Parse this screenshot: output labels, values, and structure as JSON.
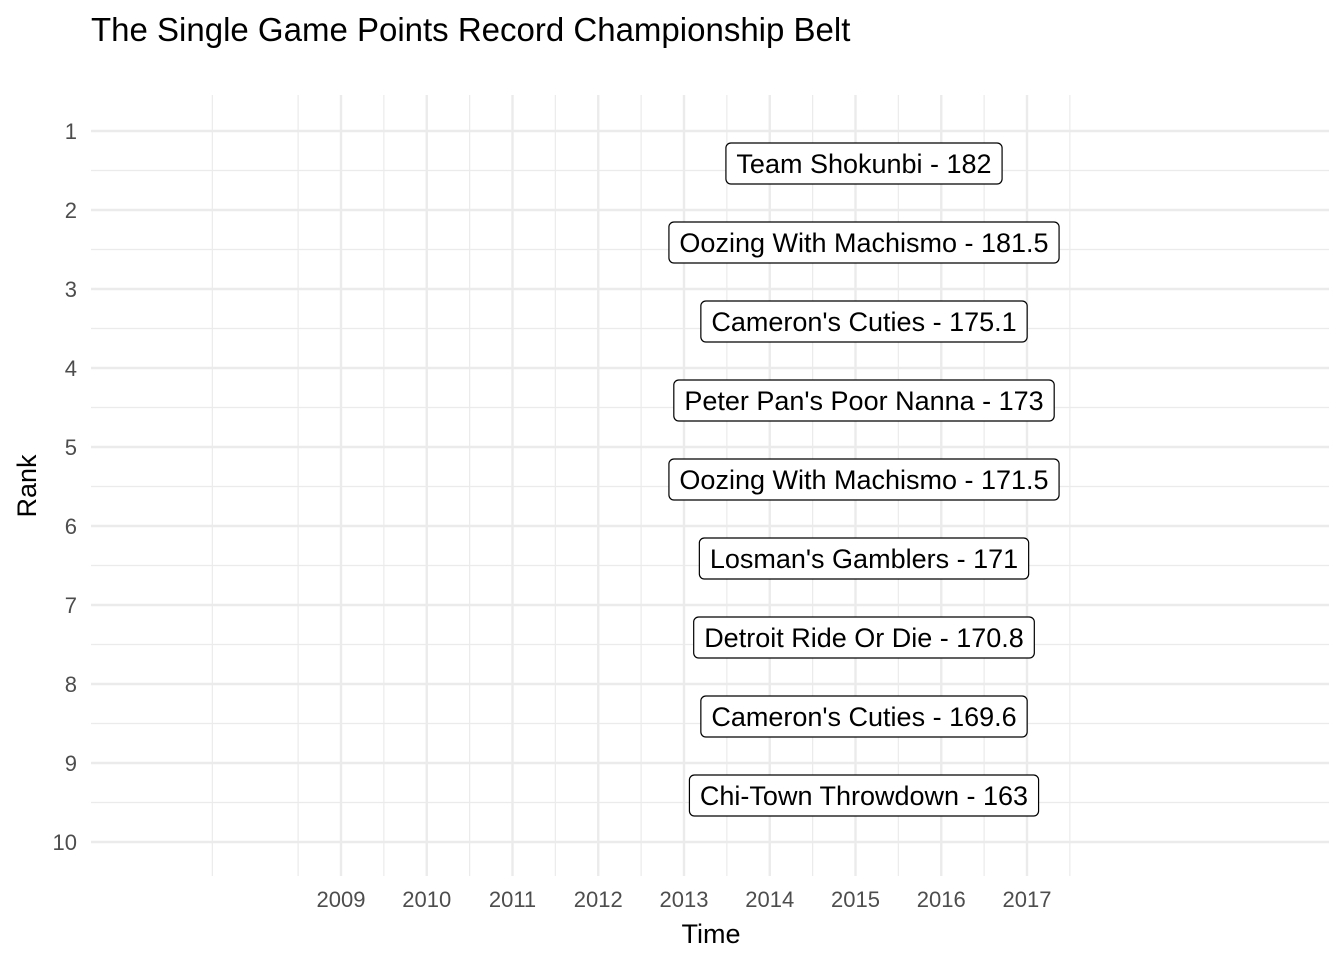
{
  "chart_data": {
    "type": "table",
    "title": "The Single Game Points Record Championship Belt",
    "xlabel": "Time",
    "ylabel": "Rank",
    "x_ticks": [
      "2009",
      "2010",
      "2011",
      "2012",
      "2013",
      "2014",
      "2015",
      "2016",
      "2017"
    ],
    "y_ticks": [
      "1",
      "2",
      "3",
      "4",
      "5",
      "6",
      "7",
      "8",
      "9",
      "10"
    ],
    "ylim": [
      1,
      10
    ],
    "y_reversed": true,
    "grid": true,
    "labels": [
      {
        "rank": 1,
        "text": "Team Shokunbi - 182",
        "team": "Team Shokunbi",
        "points": 182
      },
      {
        "rank": 2,
        "text": "Oozing With Machismo - 181.5",
        "team": "Oozing With Machismo",
        "points": 181.5
      },
      {
        "rank": 3,
        "text": "Cameron's Cuties - 175.1",
        "team": "Cameron's Cuties",
        "points": 175.1
      },
      {
        "rank": 4,
        "text": "Peter Pan's Poor Nanna - 173",
        "team": "Peter Pan's Poor Nanna",
        "points": 173
      },
      {
        "rank": 5,
        "text": "Oozing With Machismo - 171.5",
        "team": "Oozing With Machismo",
        "points": 171.5
      },
      {
        "rank": 6,
        "text": "Losman's Gamblers - 171",
        "team": "Losman's Gamblers",
        "points": 171
      },
      {
        "rank": 7,
        "text": "Detroit Ride Or Die - 170.8",
        "team": "Detroit Ride Or Die",
        "points": 170.8
      },
      {
        "rank": 8,
        "text": "Cameron's Cuties - 169.6",
        "team": "Cameron's Cuties",
        "points": 169.6
      },
      {
        "rank": 9,
        "text": "Chi-Town Throwdown - 163",
        "team": "Chi-Town Throwdown",
        "points": 163
      }
    ]
  }
}
